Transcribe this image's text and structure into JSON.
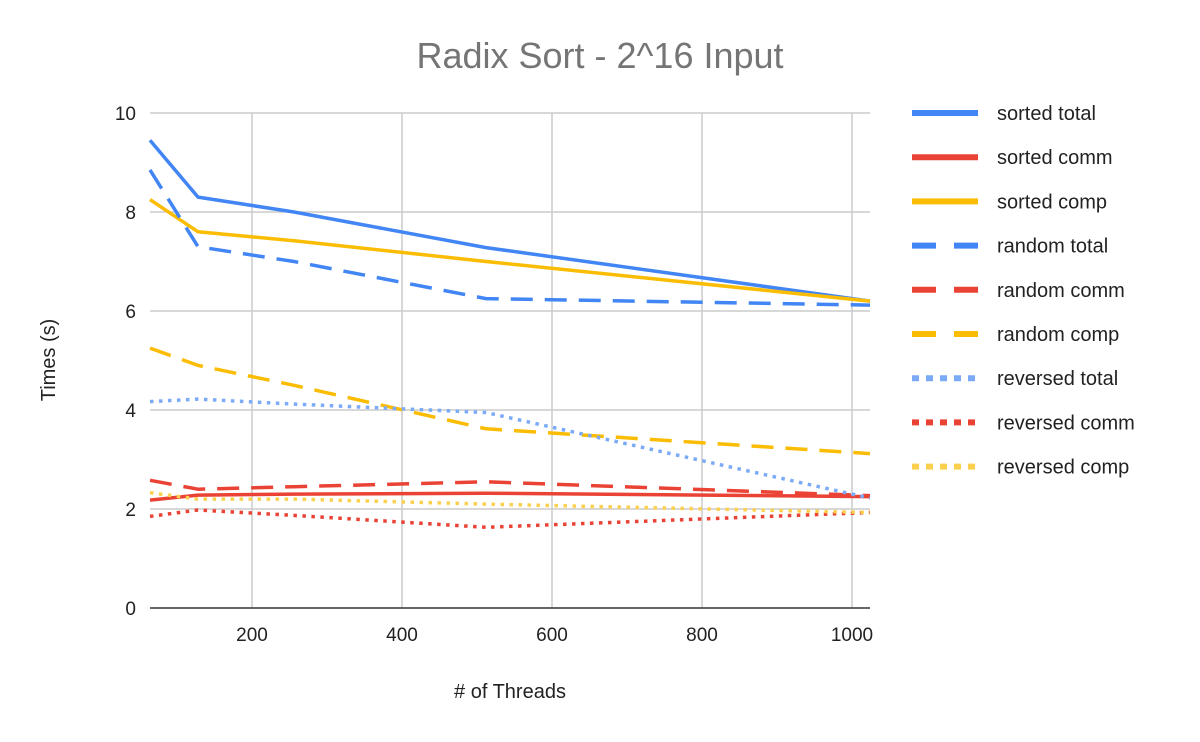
{
  "chart_data": {
    "type": "line",
    "title": "Radix Sort - 2^16 Input",
    "xlabel": "# of Threads",
    "ylabel": "Times (s)",
    "xlim": [
      64,
      1024
    ],
    "ylim": [
      0,
      10
    ],
    "x_ticks": [
      "200",
      "400",
      "600",
      "800",
      "1000"
    ],
    "x_tick_values": [
      200,
      400,
      600,
      800,
      1000
    ],
    "y_ticks": [
      "0",
      "2",
      "4",
      "6",
      "8",
      "10"
    ],
    "y_tick_values": [
      0,
      2,
      4,
      6,
      8,
      10
    ],
    "grid": true,
    "legend_position": "right",
    "x": [
      64,
      128,
      256,
      512,
      1024
    ],
    "series": [
      {
        "name": "sorted total",
        "color": "#4285f4",
        "style": "solid",
        "values": [
          9.45,
          8.3,
          8.0,
          7.28,
          6.2
        ]
      },
      {
        "name": "sorted comm",
        "color": "#ea4335",
        "style": "solid",
        "values": [
          2.18,
          2.28,
          2.3,
          2.32,
          2.25
        ]
      },
      {
        "name": "sorted comp",
        "color": "#fbbc04",
        "style": "solid",
        "values": [
          8.25,
          7.6,
          7.42,
          7.0,
          6.2
        ]
      },
      {
        "name": "random total",
        "color": "#4285f4",
        "style": "dashed",
        "values": [
          8.85,
          7.3,
          7.0,
          6.25,
          6.12
        ]
      },
      {
        "name": "random comm",
        "color": "#ea4335",
        "style": "dashed",
        "values": [
          2.58,
          2.4,
          2.45,
          2.55,
          2.27
        ]
      },
      {
        "name": "random comp",
        "color": "#fbbc04",
        "style": "dashed",
        "values": [
          5.25,
          4.9,
          4.5,
          3.62,
          3.12
        ]
      },
      {
        "name": "reversed total",
        "color": "#7baaf7",
        "style": "dotted",
        "values": [
          4.17,
          4.22,
          4.12,
          3.95,
          2.22
        ]
      },
      {
        "name": "reversed comm",
        "color": "#ea4335",
        "style": "dotted",
        "values": [
          1.85,
          1.98,
          1.87,
          1.63,
          1.93
        ]
      },
      {
        "name": "reversed comp",
        "color": "#fcd04f",
        "style": "dotted",
        "values": [
          2.33,
          2.2,
          2.2,
          2.1,
          1.93
        ]
      }
    ]
  }
}
